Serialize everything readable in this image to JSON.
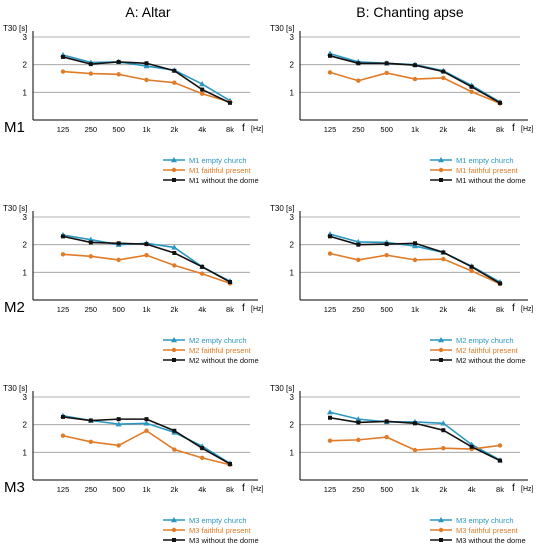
{
  "columns": [
    "A: Altar",
    "B: Chanting apse"
  ],
  "rows": [
    "M1",
    "M2",
    "M3"
  ],
  "colors": {
    "empty": "#2b97c0",
    "faithful": "#e07b28",
    "without": "#111111",
    "grid": "#9a9a9a"
  },
  "chart_data": [
    {
      "type": "line",
      "column": "A: Altar",
      "row": "M1",
      "ylabel": "T30 [s]",
      "xlabel": "f",
      "xunit": "[Hz]",
      "categories": [
        "125",
        "250",
        "500",
        "1k",
        "2k",
        "4k",
        "8k"
      ],
      "yticks": [
        "1",
        "2",
        "3"
      ],
      "ylim": [
        0,
        3
      ],
      "grid": true,
      "series": [
        {
          "name": "M1 empty church",
          "marker": "triangle",
          "values": [
            2.35,
            2.08,
            2.1,
            1.95,
            1.8,
            1.3,
            0.7
          ]
        },
        {
          "name": "M1 faithful present",
          "marker": "circle",
          "values": [
            1.75,
            1.68,
            1.65,
            1.45,
            1.35,
            0.95,
            0.65
          ]
        },
        {
          "name": "M1 without the dome",
          "marker": "square",
          "values": [
            2.28,
            2.02,
            2.1,
            2.05,
            1.78,
            1.1,
            0.62
          ]
        }
      ]
    },
    {
      "type": "line",
      "column": "B: Chanting apse",
      "row": "M1",
      "ylabel": "T30 [s]",
      "xlabel": "f",
      "xunit": "[Hz]",
      "categories": [
        "125",
        "250",
        "500",
        "1k",
        "2k",
        "4k",
        "8k"
      ],
      "yticks": [
        "1",
        "2",
        "3"
      ],
      "ylim": [
        0,
        3
      ],
      "grid": true,
      "series": [
        {
          "name": "M1 empty church",
          "marker": "triangle",
          "values": [
            2.4,
            2.1,
            2.05,
            2.0,
            1.78,
            1.25,
            0.65
          ]
        },
        {
          "name": "M1 faithful present",
          "marker": "circle",
          "values": [
            1.72,
            1.42,
            1.7,
            1.48,
            1.52,
            1.02,
            0.6
          ]
        },
        {
          "name": "M1 without the dome",
          "marker": "square",
          "values": [
            2.32,
            2.05,
            2.05,
            1.98,
            1.75,
            1.2,
            0.62
          ]
        }
      ]
    },
    {
      "type": "line",
      "column": "A: Altar",
      "row": "M2",
      "ylabel": "T30 [s]",
      "xlabel": "f",
      "xunit": "[Hz]",
      "categories": [
        "125",
        "250",
        "500",
        "1k",
        "2k",
        "4k",
        "8k"
      ],
      "yticks": [
        "1",
        "2",
        "3"
      ],
      "ylim": [
        0,
        3
      ],
      "grid": true,
      "series": [
        {
          "name": "M2 empty church",
          "marker": "triangle",
          "values": [
            2.35,
            2.18,
            2.0,
            2.05,
            1.9,
            1.2,
            0.68
          ]
        },
        {
          "name": "M2 faithful present",
          "marker": "circle",
          "values": [
            1.65,
            1.58,
            1.45,
            1.62,
            1.25,
            0.95,
            0.6
          ]
        },
        {
          "name": "M2 without the dome",
          "marker": "square",
          "values": [
            2.3,
            2.08,
            2.05,
            2.02,
            1.7,
            1.2,
            0.65
          ]
        }
      ]
    },
    {
      "type": "line",
      "column": "B: Chanting apse",
      "row": "M2",
      "ylabel": "T30 [s]",
      "xlabel": "f",
      "xunit": "[Hz]",
      "categories": [
        "125",
        "250",
        "500",
        "1k",
        "2k",
        "4k",
        "8k"
      ],
      "yticks": [
        "1",
        "2",
        "3"
      ],
      "ylim": [
        0,
        3
      ],
      "grid": true,
      "series": [
        {
          "name": "M2 empty church",
          "marker": "triangle",
          "values": [
            2.38,
            2.1,
            2.08,
            1.95,
            1.72,
            1.22,
            0.65
          ]
        },
        {
          "name": "M2 faithful present",
          "marker": "circle",
          "values": [
            1.68,
            1.45,
            1.62,
            1.45,
            1.48,
            1.05,
            0.58
          ]
        },
        {
          "name": "M2 without the dome",
          "marker": "square",
          "values": [
            2.3,
            2.0,
            2.02,
            2.05,
            1.72,
            1.2,
            0.6
          ]
        }
      ]
    },
    {
      "type": "line",
      "column": "A: Altar",
      "row": "M3",
      "ylabel": "T30 [s]",
      "xlabel": "f",
      "xunit": "[Hz]",
      "categories": [
        "125",
        "250",
        "500",
        "1k",
        "2k",
        "4k",
        "8k"
      ],
      "yticks": [
        "1",
        "2",
        "3"
      ],
      "ylim": [
        0,
        3
      ],
      "grid": true,
      "series": [
        {
          "name": "M3 empty church",
          "marker": "triangle",
          "values": [
            2.32,
            2.15,
            2.02,
            2.05,
            1.72,
            1.22,
            0.6
          ]
        },
        {
          "name": "M3 faithful present",
          "marker": "circle",
          "values": [
            1.6,
            1.38,
            1.25,
            1.78,
            1.1,
            0.8,
            0.55
          ]
        },
        {
          "name": "M3 without the dome",
          "marker": "square",
          "values": [
            2.28,
            2.15,
            2.2,
            2.2,
            1.78,
            1.15,
            0.58
          ]
        }
      ]
    },
    {
      "type": "line",
      "column": "B: Chanting apse",
      "row": "M3",
      "ylabel": "T30 [s]",
      "xlabel": "f",
      "xunit": "[Hz]",
      "categories": [
        "125",
        "250",
        "500",
        "1k",
        "2k",
        "4k",
        "8k"
      ],
      "yticks": [
        "1",
        "2",
        "3"
      ],
      "ylim": [
        0,
        3
      ],
      "grid": true,
      "series": [
        {
          "name": "M3 empty church",
          "marker": "triangle",
          "values": [
            2.45,
            2.2,
            2.1,
            2.1,
            2.05,
            1.28,
            0.72
          ]
        },
        {
          "name": "M3 faithful present",
          "marker": "circle",
          "values": [
            1.42,
            1.45,
            1.55,
            1.08,
            1.15,
            1.12,
            1.25
          ]
        },
        {
          "name": "M3 without the dome",
          "marker": "square",
          "values": [
            2.25,
            2.08,
            2.12,
            2.05,
            1.8,
            1.2,
            0.7
          ]
        }
      ]
    }
  ]
}
